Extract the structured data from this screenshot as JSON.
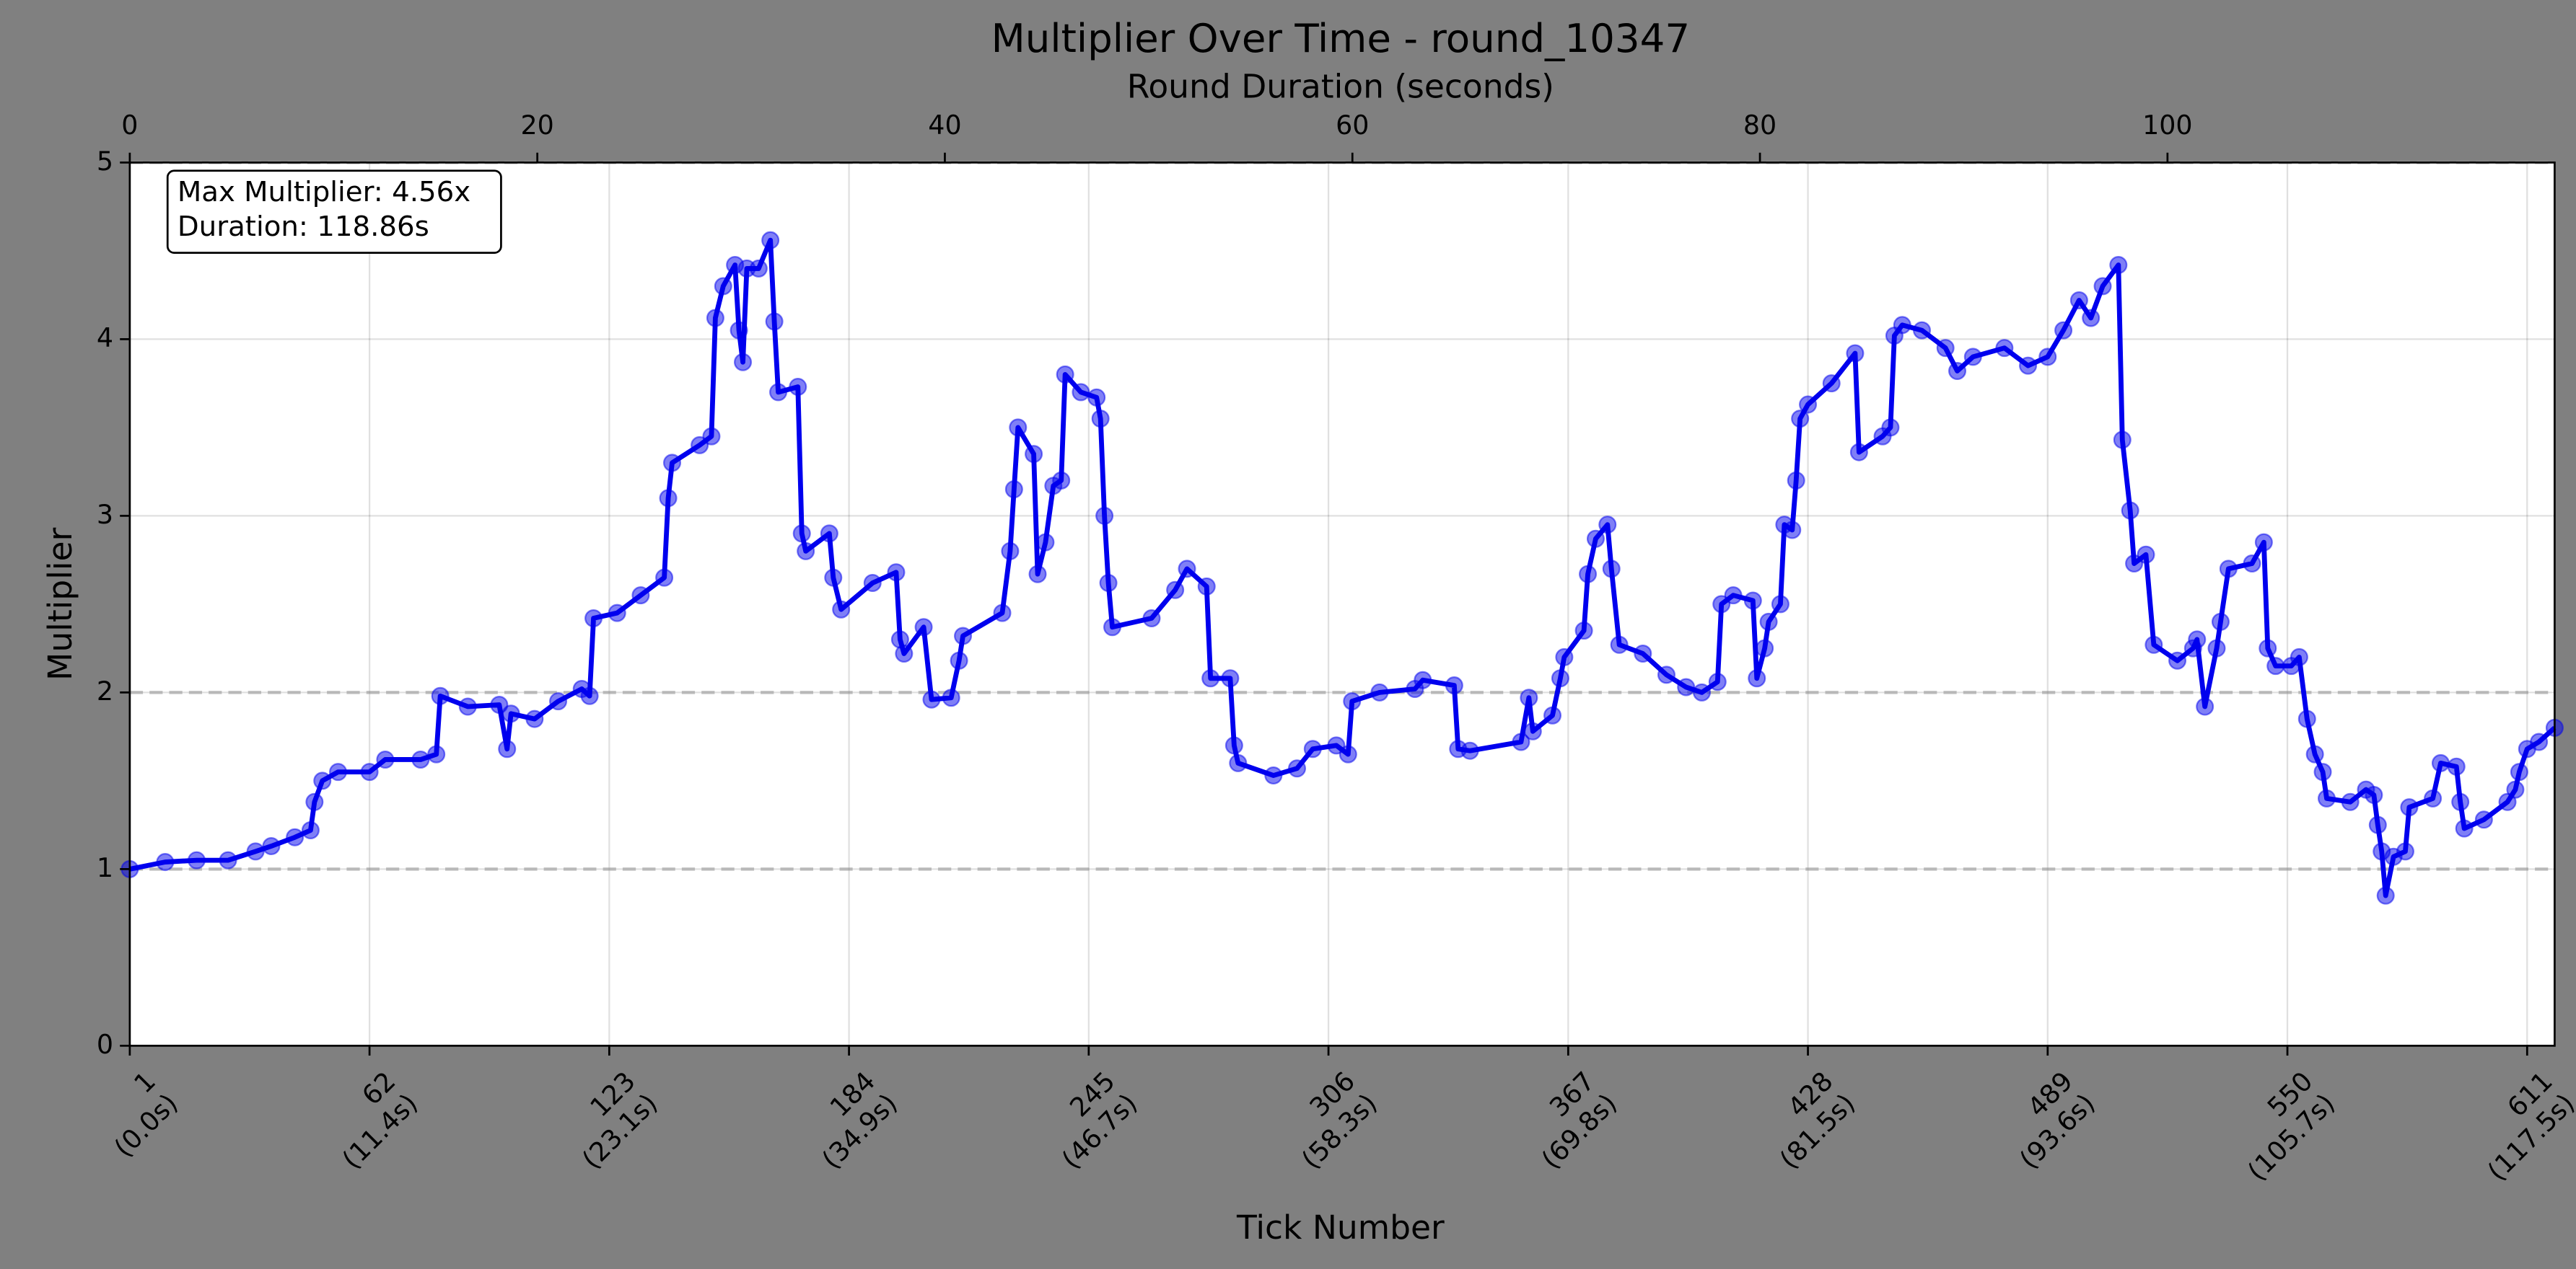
{
  "chart_data": {
    "type": "line",
    "title": "Multiplier Over Time - round_10347",
    "xlabel": "Tick Number",
    "ylabel": "Multiplier",
    "x2label": "Round Duration (seconds)",
    "annotations": [
      "Max Multiplier: 4.56x",
      "Duration: 118.86s"
    ],
    "xlim": [
      1,
      618
    ],
    "ylim": [
      0,
      5
    ],
    "x2lim": [
      0,
      119
    ],
    "xticks": [
      {
        "value": 1,
        "label": "1\n(0.0s)"
      },
      {
        "value": 62,
        "label": "62\n(11.4s)"
      },
      {
        "value": 123,
        "label": "123\n(23.1s)"
      },
      {
        "value": 184,
        "label": "184\n(34.9s)"
      },
      {
        "value": 245,
        "label": "245\n(46.7s)"
      },
      {
        "value": 306,
        "label": "306\n(58.3s)"
      },
      {
        "value": 367,
        "label": "367\n(69.8s)"
      },
      {
        "value": 428,
        "label": "428\n(81.5s)"
      },
      {
        "value": 489,
        "label": "489\n(93.6s)"
      },
      {
        "value": 550,
        "label": "550\n(105.7s)"
      },
      {
        "value": 611,
        "label": "611\n(117.5s)"
      }
    ],
    "yticks": [
      0,
      1,
      2,
      3,
      4,
      5
    ],
    "x2ticks": [
      0,
      20,
      40,
      60,
      80,
      100
    ],
    "hlines": [
      1,
      2,
      5
    ],
    "grid": true,
    "x": [
      1,
      10,
      18,
      26,
      33,
      37,
      43,
      47,
      48,
      50,
      54,
      62,
      66,
      75,
      79,
      80,
      87,
      95,
      97,
      98,
      104,
      110,
      116,
      118,
      119,
      125,
      131,
      137,
      138,
      139,
      146,
      149,
      150,
      152,
      155,
      156,
      157,
      158,
      161,
      164,
      165,
      166,
      171,
      172,
      173,
      179,
      180,
      182,
      190,
      196,
      197,
      198,
      203,
      205,
      210,
      212,
      213,
      223,
      225,
      226,
      227,
      231,
      232,
      234,
      236,
      238,
      239,
      243,
      247,
      248,
      249,
      250,
      251,
      261,
      267,
      270,
      275,
      276,
      281,
      282,
      283,
      292,
      298,
      302,
      308,
      311,
      312,
      319,
      328,
      330,
      338,
      339,
      342,
      355,
      357,
      358,
      363,
      365,
      366,
      371,
      372,
      374,
      377,
      378,
      380,
      386,
      392,
      397,
      401,
      405,
      406,
      409,
      414,
      415,
      417,
      418,
      421,
      422,
      424,
      425,
      426,
      428,
      434,
      440,
      441,
      447,
      449,
      450,
      452,
      457,
      463,
      466,
      470,
      478,
      484,
      489,
      493,
      497,
      500,
      503,
      507,
      508,
      510,
      511,
      514,
      516,
      522,
      526,
      527,
      529,
      532,
      533,
      535,
      541,
      544,
      545,
      547,
      551,
      553,
      555,
      557,
      559,
      560,
      566,
      570,
      572,
      573,
      574,
      575,
      577,
      580,
      581,
      587,
      589,
      593,
      594,
      595,
      600,
      606,
      608,
      609,
      611,
      614,
      618
    ],
    "series": [
      {
        "name": "Multiplier",
        "color": "#0000ee",
        "values": [
          1.0,
          1.04,
          1.05,
          1.05,
          1.1,
          1.13,
          1.18,
          1.22,
          1.38,
          1.5,
          1.55,
          1.55,
          1.62,
          1.62,
          1.65,
          1.98,
          1.92,
          1.93,
          1.68,
          1.88,
          1.85,
          1.95,
          2.02,
          1.98,
          2.42,
          2.45,
          2.55,
          2.65,
          3.1,
          3.3,
          3.4,
          3.45,
          4.12,
          4.3,
          4.42,
          4.05,
          3.87,
          4.4,
          4.4,
          4.56,
          4.1,
          3.7,
          3.73,
          2.9,
          2.8,
          2.9,
          2.65,
          2.47,
          2.62,
          2.68,
          2.3,
          2.22,
          2.37,
          1.96,
          1.97,
          2.18,
          2.32,
          2.45,
          2.8,
          3.15,
          3.5,
          3.35,
          2.67,
          2.85,
          3.17,
          3.2,
          3.8,
          3.7,
          3.67,
          3.55,
          3.0,
          2.62,
          2.37,
          2.42,
          2.58,
          2.7,
          2.6,
          2.08,
          2.08,
          1.7,
          1.6,
          1.53,
          1.57,
          1.68,
          1.7,
          1.65,
          1.95,
          2.0,
          2.02,
          2.07,
          2.04,
          1.68,
          1.67,
          1.72,
          1.97,
          1.78,
          1.87,
          2.08,
          2.2,
          2.35,
          2.67,
          2.87,
          2.95,
          2.7,
          2.27,
          2.22,
          2.1,
          2.03,
          2.0,
          2.06,
          2.5,
          2.55,
          2.52,
          2.08,
          2.25,
          2.4,
          2.5,
          2.95,
          2.92,
          3.2,
          3.55,
          3.63,
          3.75,
          3.92,
          3.36,
          3.45,
          3.5,
          4.02,
          4.08,
          4.05,
          3.95,
          3.82,
          3.9,
          3.95,
          3.85,
          3.9,
          4.05,
          4.22,
          4.12,
          4.3,
          4.42,
          3.43,
          3.03,
          2.73,
          2.78,
          2.27,
          2.18,
          2.25,
          2.3,
          1.92,
          2.25,
          2.4,
          2.7,
          2.73,
          2.85,
          2.25,
          2.15,
          2.15,
          2.2,
          1.85,
          1.65,
          1.55,
          1.4,
          1.38,
          1.45,
          1.42,
          1.25,
          1.1,
          0.85,
          1.07,
          1.1,
          1.35,
          1.4,
          1.6,
          1.58,
          1.38,
          1.23,
          1.28,
          1.38,
          1.45,
          1.55,
          1.68,
          1.72,
          1.8
        ]
      }
    ]
  }
}
